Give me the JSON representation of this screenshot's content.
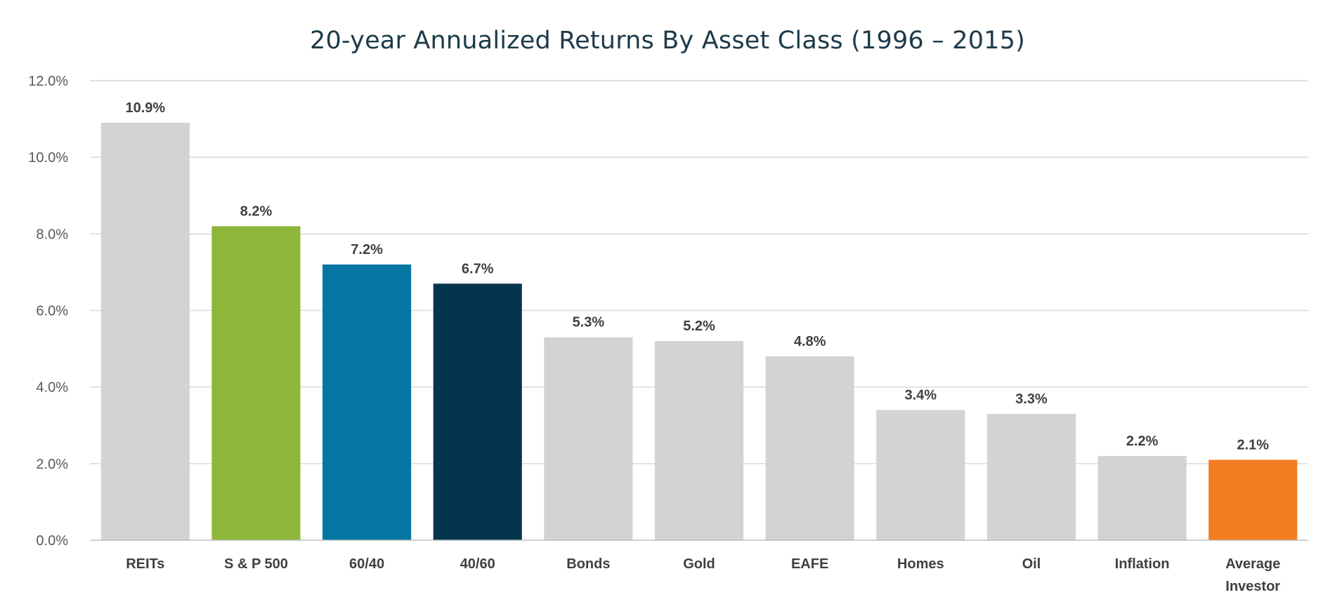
{
  "chart_data": {
    "type": "bar",
    "title": "20-year Annualized Returns By Asset Class (1996 – 2015)",
    "xlabel": "",
    "ylabel": "",
    "ylim": [
      0,
      12
    ],
    "yticks": [
      0,
      2,
      4,
      6,
      8,
      10,
      12
    ],
    "ytick_labels": [
      "0.0%",
      "2.0%",
      "4.0%",
      "6.0%",
      "8.0%",
      "10.0%",
      "12.0%"
    ],
    "grid": true,
    "legend": "none",
    "categories": [
      [
        "REITs"
      ],
      [
        "S & P 500"
      ],
      [
        "60/40"
      ],
      [
        "40/60"
      ],
      [
        "Bonds"
      ],
      [
        "Gold"
      ],
      [
        "EAFE"
      ],
      [
        "Homes"
      ],
      [
        "Oil"
      ],
      [
        "Inflation"
      ],
      [
        "Average",
        "Investor"
      ]
    ],
    "values": [
      10.9,
      8.2,
      7.2,
      6.7,
      5.3,
      5.2,
      4.8,
      3.4,
      3.3,
      2.2,
      2.1
    ],
    "value_labels": [
      "10.9%",
      "8.2%",
      "7.2%",
      "6.7%",
      "5.3%",
      "5.2%",
      "4.8%",
      "3.4%",
      "3.3%",
      "2.2%",
      "2.1%"
    ],
    "colors": [
      "#d1d3d4",
      "#8db73a",
      "#0476a1",
      "#05354d",
      "#d1d3d4",
      "#d1d3d4",
      "#d1d3d4",
      "#d1d3d4",
      "#d1d3d4",
      "#d1d3d4",
      "#f37d22"
    ]
  }
}
